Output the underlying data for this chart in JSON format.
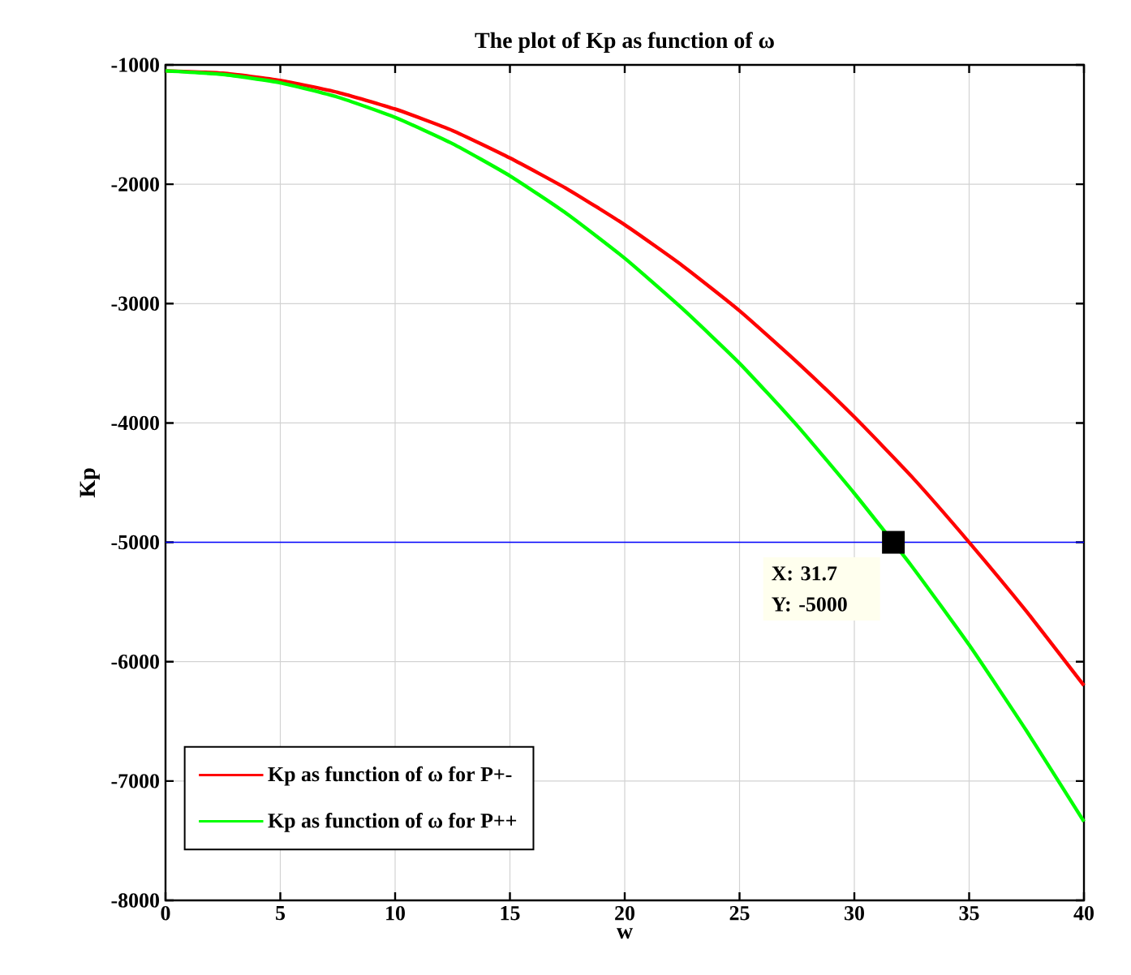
{
  "chart_data": {
    "type": "line",
    "title": "The plot of Kp as function of ω",
    "xlabel": "w",
    "ylabel": "Kp",
    "x": [
      0,
      2.5,
      5,
      7.5,
      10,
      12.5,
      15,
      17.5,
      20,
      22.5,
      25,
      27.5,
      30,
      32.5,
      35,
      37.5,
      40
    ],
    "series": [
      {
        "name": "Kp as function of ω for P+-",
        "color": "#ff0000",
        "values": [
          -1050,
          -1070,
          -1130,
          -1230,
          -1370,
          -1550,
          -1780,
          -2040,
          -2340,
          -2680,
          -3060,
          -3490,
          -3950,
          -4450,
          -5000,
          -5580,
          -6200
        ]
      },
      {
        "name": "Kp as function of ω for P++",
        "color": "#00ff00",
        "values": [
          -1050,
          -1080,
          -1150,
          -1270,
          -1440,
          -1660,
          -1930,
          -2250,
          -2620,
          -3040,
          -3500,
          -4020,
          -4590,
          -5200,
          -5860,
          -6580,
          -7340
        ]
      }
    ],
    "xlim": [
      0,
      40
    ],
    "ylim": [
      -8000,
      -1000
    ],
    "xticks": [
      0,
      5,
      10,
      15,
      20,
      25,
      30,
      35,
      40
    ],
    "yticks": [
      -8000,
      -7000,
      -6000,
      -5000,
      -4000,
      -3000,
      -2000,
      -1000
    ],
    "ref_lines": [
      {
        "axis": "y",
        "value": -5000,
        "color": "#0000ff"
      }
    ],
    "annotations": [
      {
        "text": "X: 31.7",
        "x": 31.7,
        "y": -5000
      },
      "Y: -5000"
    ],
    "grid": true,
    "legend": "bottom left",
    "marker": "none",
    "line_style": "solid"
  }
}
